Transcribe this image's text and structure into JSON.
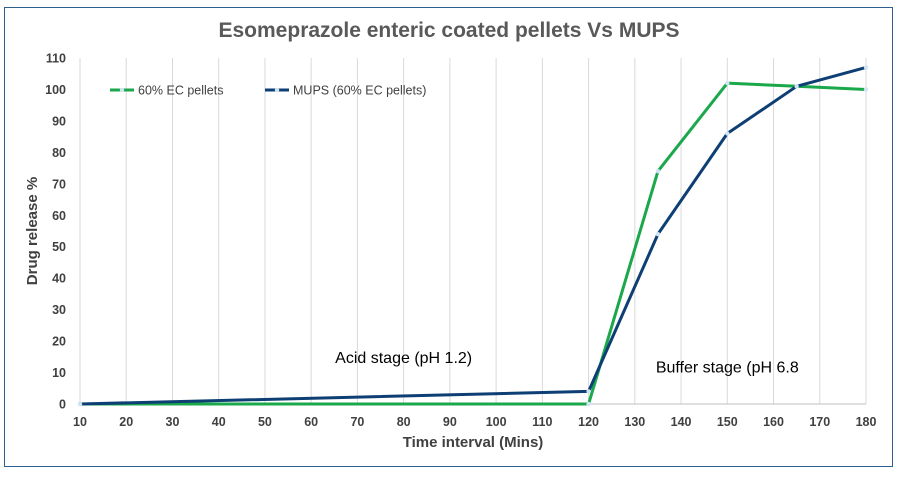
{
  "chart_data": {
    "type": "line",
    "title": "Esomeprazole enteric coated pellets Vs MUPS",
    "xlabel": "Time interval (Mins)",
    "ylabel": "Drug release %",
    "x": [
      10,
      120,
      135,
      150,
      165,
      180
    ],
    "x_ticks": [
      10,
      20,
      30,
      40,
      50,
      60,
      70,
      80,
      90,
      100,
      110,
      120,
      130,
      140,
      150,
      160,
      170,
      180
    ],
    "xlim": [
      10,
      180
    ],
    "ylim": [
      0,
      110
    ],
    "y_ticks": [
      0,
      10,
      20,
      30,
      40,
      50,
      60,
      70,
      80,
      90,
      100,
      110
    ],
    "grid": "vertical",
    "legend_position": "top-left",
    "series": [
      {
        "name": "60% EC pellets",
        "color": "#1aa84b",
        "values": [
          0,
          0,
          74,
          102,
          101,
          100
        ]
      },
      {
        "name": "MUPS (60% EC pellets)",
        "color": "#0e3f74",
        "values": [
          0,
          4,
          54,
          86,
          101,
          107
        ]
      }
    ],
    "annotations": [
      {
        "text": "Acid stage (pH 1.2)",
        "x": 80,
        "y": 13
      },
      {
        "text": "Buffer stage (pH 6.8",
        "x": 150,
        "y": 10
      }
    ]
  }
}
